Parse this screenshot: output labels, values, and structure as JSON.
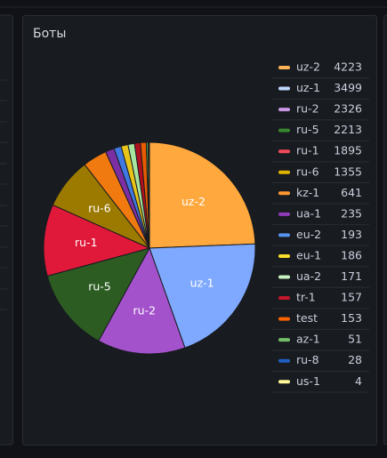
{
  "chart_data": {
    "type": "pie",
    "title": "Боты",
    "categories": [
      "uz-2",
      "uz-1",
      "ru-2",
      "ru-5",
      "ru-1",
      "ru-6",
      "kz-1",
      "ua-1",
      "eu-2",
      "eu-1",
      "ua-2",
      "tr-1",
      "test",
      "az-1",
      "ru-8",
      "us-1"
    ],
    "values": [
      4223,
      3499,
      2326,
      2213,
      1895,
      1355,
      641,
      235,
      193,
      186,
      171,
      157,
      153,
      51,
      28,
      4
    ],
    "colors": [
      "#ffa83e",
      "#7fa9ff",
      "#a352cc",
      "#2c5c22",
      "#e0183a",
      "#9c7a00",
      "#f07a10",
      "#7b2fa3",
      "#3f78e0",
      "#e6c41a",
      "#a8e6a0",
      "#b0101f",
      "#e85a00",
      "#5aa84f",
      "#1a55b8",
      "#f0e070"
    ],
    "legend_colors": [
      "#ffb357",
      "#c0d8ff",
      "#ca95e5",
      "#37872d",
      "#f2495c",
      "#e0b400",
      "#ff9830",
      "#8f3bb8",
      "#5794f2",
      "#fade2a",
      "#c8f2c2",
      "#c4162a",
      "#fa6400",
      "#73bf69",
      "#1f60c4",
      "#fff899"
    ],
    "legend": "right"
  }
}
